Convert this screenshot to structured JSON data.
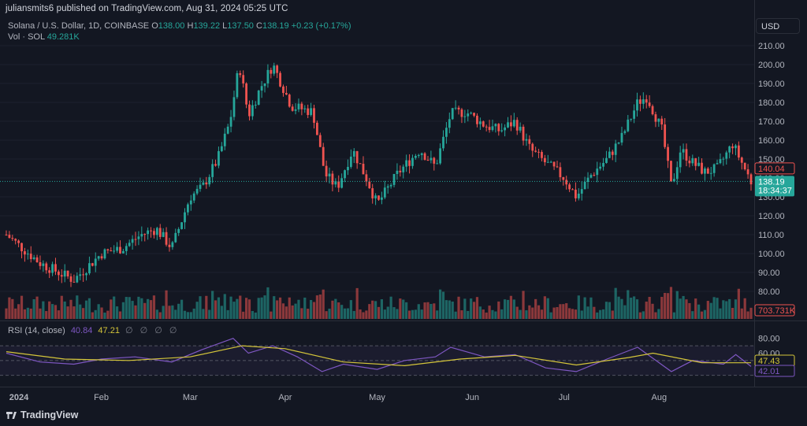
{
  "header": {
    "published_line": "juliansmits6 published on TradingView.com, Aug 31, 2024 05:25 UTC"
  },
  "legend": {
    "symbol": "Solana / U.S. Dollar, 1D, COINBASE",
    "open_label": "O",
    "open": "138.00",
    "high_label": "H",
    "high": "139.22",
    "low_label": "L",
    "low": "137.50",
    "close_label": "C",
    "close": "138.19",
    "change": "+0.23 (+0.17%)",
    "vol_label": "Vol · SOL",
    "vol_value": "49.281K"
  },
  "currency_button": "USD",
  "rsi": {
    "label": "RSI (14, close)",
    "rsi_value": "40.84",
    "ma_value": "47.21",
    "settings_icons": "∅ ∅ ∅ ∅"
  },
  "price_axis": {
    "ticks": [
      "210.00",
      "200.00",
      "190.00",
      "180.00",
      "170.00",
      "160.00",
      "150.00",
      "140.00",
      "130.00",
      "120.00",
      "110.00",
      "100.00",
      "90.00",
      "80.00"
    ],
    "current_price": "138.19",
    "countdown": "18:34:37",
    "high_marker": "140.04",
    "volume_marker": "703.731K"
  },
  "rsi_axis": {
    "ticks": [
      "80.00",
      "60.00"
    ],
    "ma_marker": "47.43",
    "rsi_marker": "42.01"
  },
  "time_axis": {
    "labels": [
      "2024",
      "Feb",
      "Mar",
      "Apr",
      "May",
      "Jun",
      "Jul",
      "Aug"
    ]
  },
  "footer": {
    "brand": "TradingView"
  },
  "colors": {
    "background": "#131722",
    "up": "#26a69a",
    "down": "#ef5350",
    "rsi_line": "#7e57c2",
    "rsi_ma": "#d4c53a"
  },
  "chart_data": [
    {
      "type": "candlestick",
      "title": "Solana / U.S. Dollar, 1D, COINBASE",
      "x_range": [
        "2024-01-01",
        "2024-08-31"
      ],
      "ylim": [
        75,
        215
      ],
      "monthly_path_close": [
        {
          "date": "2024-01-01",
          "value": 110
        },
        {
          "date": "2024-01-12",
          "value": 95
        },
        {
          "date": "2024-01-23",
          "value": 86
        },
        {
          "date": "2024-02-01",
          "value": 100
        },
        {
          "date": "2024-02-08",
          "value": 103
        },
        {
          "date": "2024-02-14",
          "value": 110
        },
        {
          "date": "2024-02-19",
          "value": 113
        },
        {
          "date": "2024-02-24",
          "value": 103
        },
        {
          "date": "2024-03-01",
          "value": 130
        },
        {
          "date": "2024-03-05",
          "value": 135
        },
        {
          "date": "2024-03-10",
          "value": 150
        },
        {
          "date": "2024-03-14",
          "value": 170
        },
        {
          "date": "2024-03-17",
          "value": 200
        },
        {
          "date": "2024-03-20",
          "value": 173
        },
        {
          "date": "2024-03-24",
          "value": 188
        },
        {
          "date": "2024-03-28",
          "value": 200
        },
        {
          "date": "2024-04-03",
          "value": 178
        },
        {
          "date": "2024-04-10",
          "value": 175
        },
        {
          "date": "2024-04-14",
          "value": 142
        },
        {
          "date": "2024-04-18",
          "value": 135
        },
        {
          "date": "2024-04-23",
          "value": 155
        },
        {
          "date": "2024-04-28",
          "value": 138
        },
        {
          "date": "2024-05-01",
          "value": 126
        },
        {
          "date": "2024-05-08",
          "value": 143
        },
        {
          "date": "2024-05-15",
          "value": 155
        },
        {
          "date": "2024-05-20",
          "value": 146
        },
        {
          "date": "2024-05-25",
          "value": 174
        },
        {
          "date": "2024-05-30",
          "value": 175
        },
        {
          "date": "2024-06-05",
          "value": 168
        },
        {
          "date": "2024-06-10",
          "value": 165
        },
        {
          "date": "2024-06-15",
          "value": 170
        },
        {
          "date": "2024-06-20",
          "value": 155
        },
        {
          "date": "2024-06-25",
          "value": 148
        },
        {
          "date": "2024-07-01",
          "value": 140
        },
        {
          "date": "2024-07-05",
          "value": 130
        },
        {
          "date": "2024-07-10",
          "value": 142
        },
        {
          "date": "2024-07-15",
          "value": 150
        },
        {
          "date": "2024-07-20",
          "value": 162
        },
        {
          "date": "2024-07-25",
          "value": 180
        },
        {
          "date": "2024-07-28",
          "value": 183
        },
        {
          "date": "2024-08-02",
          "value": 165
        },
        {
          "date": "2024-08-05",
          "value": 135
        },
        {
          "date": "2024-08-08",
          "value": 155
        },
        {
          "date": "2024-08-12",
          "value": 148
        },
        {
          "date": "2024-08-16",
          "value": 143
        },
        {
          "date": "2024-08-20",
          "value": 145
        },
        {
          "date": "2024-08-25",
          "value": 158
        },
        {
          "date": "2024-08-31",
          "value": 138
        }
      ]
    },
    {
      "type": "line",
      "title": "RSI (14, close)",
      "ylim": [
        20,
        85
      ],
      "reference_levels": [
        70,
        50,
        30
      ],
      "series": [
        {
          "name": "RSI",
          "values": [
            {
              "date": "2024-01-01",
              "value": 60
            },
            {
              "date": "2024-01-12",
              "value": 48
            },
            {
              "date": "2024-01-23",
              "value": 45
            },
            {
              "date": "2024-02-01",
              "value": 52
            },
            {
              "date": "2024-02-12",
              "value": 55
            },
            {
              "date": "2024-02-24",
              "value": 48
            },
            {
              "date": "2024-03-05",
              "value": 65
            },
            {
              "date": "2024-03-15",
              "value": 80
            },
            {
              "date": "2024-03-20",
              "value": 60
            },
            {
              "date": "2024-03-28",
              "value": 70
            },
            {
              "date": "2024-04-05",
              "value": 55
            },
            {
              "date": "2024-04-13",
              "value": 35
            },
            {
              "date": "2024-04-20",
              "value": 45
            },
            {
              "date": "2024-05-01",
              "value": 38
            },
            {
              "date": "2024-05-10",
              "value": 50
            },
            {
              "date": "2024-05-20",
              "value": 55
            },
            {
              "date": "2024-05-25",
              "value": 68
            },
            {
              "date": "2024-06-05",
              "value": 55
            },
            {
              "date": "2024-06-15",
              "value": 58
            },
            {
              "date": "2024-06-25",
              "value": 40
            },
            {
              "date": "2024-07-05",
              "value": 35
            },
            {
              "date": "2024-07-15",
              "value": 52
            },
            {
              "date": "2024-07-25",
              "value": 68
            },
            {
              "date": "2024-08-05",
              "value": 35
            },
            {
              "date": "2024-08-12",
              "value": 50
            },
            {
              "date": "2024-08-22",
              "value": 45
            },
            {
              "date": "2024-08-26",
              "value": 58
            },
            {
              "date": "2024-08-31",
              "value": 42
            }
          ]
        },
        {
          "name": "RSI MA",
          "values": [
            {
              "date": "2024-01-01",
              "value": 62
            },
            {
              "date": "2024-01-20",
              "value": 52
            },
            {
              "date": "2024-02-10",
              "value": 50
            },
            {
              "date": "2024-03-01",
              "value": 55
            },
            {
              "date": "2024-03-18",
              "value": 70
            },
            {
              "date": "2024-04-01",
              "value": 66
            },
            {
              "date": "2024-04-20",
              "value": 48
            },
            {
              "date": "2024-05-10",
              "value": 43
            },
            {
              "date": "2024-05-28",
              "value": 52
            },
            {
              "date": "2024-06-15",
              "value": 57
            },
            {
              "date": "2024-07-05",
              "value": 44
            },
            {
              "date": "2024-07-22",
              "value": 54
            },
            {
              "date": "2024-07-30",
              "value": 60
            },
            {
              "date": "2024-08-15",
              "value": 47
            },
            {
              "date": "2024-08-31",
              "value": 47
            }
          ]
        }
      ]
    }
  ]
}
